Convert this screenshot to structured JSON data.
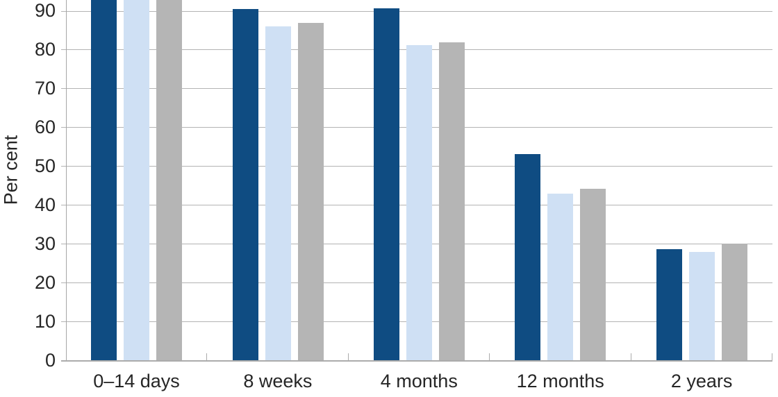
{
  "chart_data": {
    "type": "bar",
    "title": "",
    "ylabel": "Per cent",
    "xlabel": "",
    "categories": [
      "0–14 days",
      "8 weeks",
      "4 months",
      "12 months",
      "2 years"
    ],
    "series": [
      {
        "name": "dark-blue",
        "color": "#0f4c82",
        "values": [
          96.0,
          90.5,
          90.7,
          53.1,
          28.7
        ]
      },
      {
        "name": "light-blue",
        "color": "#cfe0f4",
        "values": [
          95.5,
          86.0,
          81.3,
          42.9,
          27.9
        ]
      },
      {
        "name": "grey",
        "color": "#b5b5b5",
        "values": [
          96.2,
          87.0,
          81.9,
          44.2,
          30.1
        ]
      }
    ],
    "y_ticks": [
      0,
      10,
      20,
      30,
      40,
      50,
      60,
      70,
      80,
      90
    ],
    "ylim_visible": [
      0,
      92.8
    ],
    "grid": true,
    "legend": "none",
    "note": "Top of chart is cropped: all three 0–14 days bars run past the upper edge of the image, so their values are estimates (>93)."
  },
  "colors": {
    "background": "#ffffff",
    "gridline": "#b3b3b3",
    "axis": "#a9a9a9",
    "text": "#262626"
  }
}
